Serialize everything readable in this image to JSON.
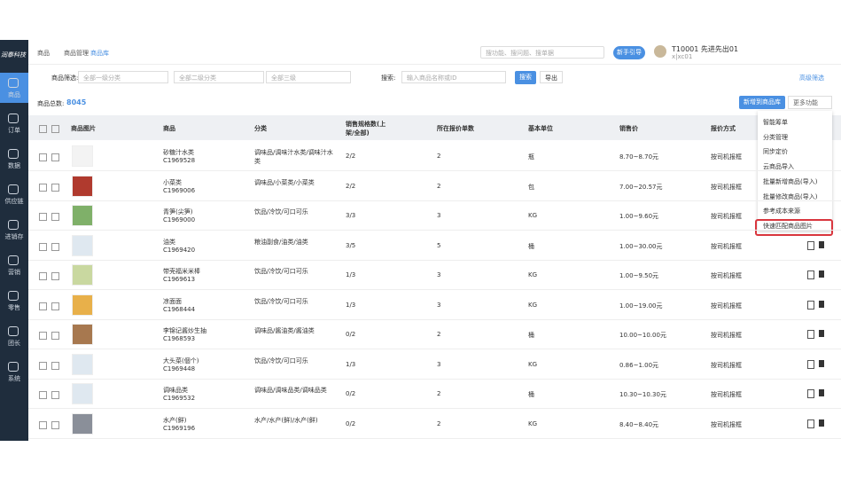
{
  "header": {
    "logo": "润泰科技",
    "breadcrumb": [
      "商品",
      "商品管理",
      "商品库"
    ],
    "search_placeholder": "搜功能、搜问题、搜单据",
    "guide_button": "新手引导",
    "user_name": "T10001 先进先出01",
    "user_id": "x|xc01"
  },
  "sidebar": [
    "商品",
    "订单",
    "数据",
    "供应链",
    "进销存",
    "营销",
    "零售",
    "团长",
    "系统"
  ],
  "filters": {
    "label": "商品筛选:",
    "level1": "全部一级分类",
    "level2": "全部二级分类",
    "level3": "全部三级",
    "search_label": "搜索:",
    "search_placeholder": "输入商品名称或ID",
    "search_button": "搜索",
    "export_button": "导出",
    "advanced": "高级筛选"
  },
  "summary": {
    "label": "商品总数:",
    "total": "8045",
    "add_button": "新增到商品库",
    "more_button": "更多功能"
  },
  "menu": [
    "智能筹单",
    "分类管理",
    "同步定价",
    "云商品导入",
    "批量新增商品(导入)",
    "批量修改商品(导入)",
    "参考成本来源",
    "快速匹配商品图片"
  ],
  "table": {
    "headers": [
      "商品图片",
      "商品",
      "分类",
      "销售规格数(上架/全部)",
      "所在报价单数",
      "基本单位",
      "销售价",
      "报价方式"
    ],
    "rows": [
      [
        "砂糖汁水类",
        "C1969528",
        "调味品/调味汁水类/调味汁水类",
        "2/2",
        "2",
        "瓶",
        "8.70~8.70元",
        "按司机报框"
      ],
      [
        "小菜类",
        "C1969006",
        "调味品/小菜类/小菜类",
        "2/2",
        "2",
        "包",
        "7.00~20.57元",
        "按司机报框"
      ],
      [
        "青笋(尖笋)",
        "C1969000",
        "饮品/冷饮/可口可乐",
        "3/3",
        "3",
        "KG",
        "1.00~9.60元",
        "按司机报框"
      ],
      [
        "油类",
        "C1969420",
        "粮油副食/油类/油类",
        "3/5",
        "5",
        "桶",
        "1.00~30.00元",
        "按司机报框"
      ],
      [
        "带壳福米米棒",
        "C1969613",
        "饮品/冷饮/可口可乐",
        "1/3",
        "3",
        "KG",
        "1.00~9.50元",
        "按司机报框"
      ],
      [
        "凉面面",
        "C1968444",
        "饮品/冷饮/可口可乐",
        "1/3",
        "3",
        "KG",
        "1.00~19.00元",
        "按司机报框"
      ],
      [
        "李锦记酱炒生抽",
        "C1968593",
        "调味品/酱油类/酱油类",
        "0/2",
        "2",
        "桶",
        "10.00~10.00元",
        "按司机报框"
      ],
      [
        "大头菜(個个)",
        "C1969448",
        "饮品/冷饮/可口可乐",
        "1/3",
        "3",
        "KG",
        "0.86~1.00元",
        "按司机报框"
      ],
      [
        "调味品类",
        "C1969532",
        "调味品/调味品类/调味品类",
        "0/2",
        "2",
        "桶",
        "10.30~10.30元",
        "按司机报框"
      ],
      [
        "水产(鲜)",
        "C1969196",
        "水产/水产(鲜)/水产(鲜)",
        "0/2",
        "2",
        "KG",
        "8.40~8.40元",
        "按司机报框"
      ]
    ]
  }
}
